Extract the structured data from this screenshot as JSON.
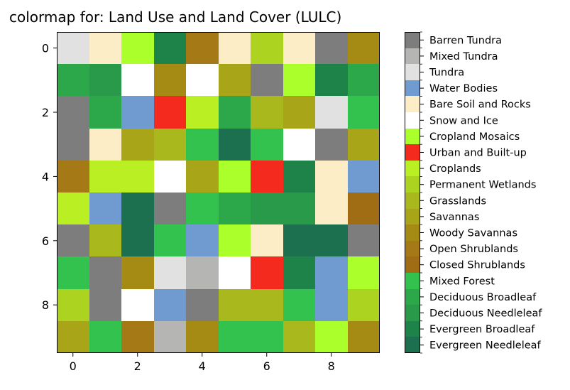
{
  "chart_data": {
    "type": "heatmap",
    "title": "colormap for: Land Use and Land Cover (LULC)",
    "xlabel": "",
    "ylabel": "",
    "x_ticks": [
      0,
      2,
      4,
      6,
      8
    ],
    "y_ticks": [
      0,
      2,
      4,
      6,
      8
    ],
    "grid": false,
    "legend_placement": "right colorbar",
    "categories": [
      {
        "name": "Evergreen Needleleaf",
        "color": "#1c6f4f"
      },
      {
        "name": "Evergreen Broadleaf",
        "color": "#1e8349"
      },
      {
        "name": "Deciduous Needleleaf",
        "color": "#289a4a"
      },
      {
        "name": "Deciduous Broadleaf",
        "color": "#2ca84b"
      },
      {
        "name": "Mixed Forest",
        "color": "#34c24e"
      },
      {
        "name": "Closed Shrublands",
        "color": "#a06d14"
      },
      {
        "name": "Open Shrublands",
        "color": "#a57916"
      },
      {
        "name": "Woody Savannas",
        "color": "#a58b14"
      },
      {
        "name": "Savannas",
        "color": "#a9a518"
      },
      {
        "name": "Grasslands",
        "color": "#a8b81d"
      },
      {
        "name": "Permanent Wetlands",
        "color": "#acd31f"
      },
      {
        "name": "Croplands",
        "color": "#baef24"
      },
      {
        "name": "Urban and Built-up",
        "color": "#f42a1e"
      },
      {
        "name": "Cropland Mosaics",
        "color": "#abff2a"
      },
      {
        "name": "Snow and Ice",
        "color": "#ffffff"
      },
      {
        "name": "Bare Soil and Rocks",
        "color": "#fdedc6"
      },
      {
        "name": "Water Bodies",
        "color": "#6f9bd1"
      },
      {
        "name": "Tundra",
        "color": "#e1e1e1"
      },
      {
        "name": "Mixed Tundra",
        "color": "#b5b5b3"
      },
      {
        "name": "Barren Tundra",
        "color": "#7d7d7d"
      }
    ],
    "grid_values": [
      [
        17,
        15,
        13,
        1,
        6,
        15,
        10,
        15,
        19,
        7
      ],
      [
        3,
        2,
        14,
        7,
        14,
        8,
        19,
        13,
        1,
        3
      ],
      [
        19,
        3,
        16,
        12,
        11,
        3,
        9,
        8,
        17,
        4
      ],
      [
        19,
        15,
        8,
        9,
        4,
        0,
        4,
        14,
        19,
        8
      ],
      [
        6,
        11,
        11,
        14,
        8,
        13,
        12,
        1,
        15,
        16
      ],
      [
        11,
        16,
        0,
        19,
        4,
        3,
        2,
        2,
        15,
        5
      ],
      [
        19,
        9,
        0,
        4,
        16,
        13,
        15,
        0,
        0,
        19
      ],
      [
        4,
        19,
        7,
        17,
        18,
        14,
        12,
        1,
        16,
        13
      ],
      [
        10,
        19,
        14,
        16,
        19,
        9,
        9,
        4,
        16,
        10
      ],
      [
        8,
        4,
        6,
        18,
        7,
        4,
        4,
        9,
        13,
        7
      ]
    ]
  }
}
